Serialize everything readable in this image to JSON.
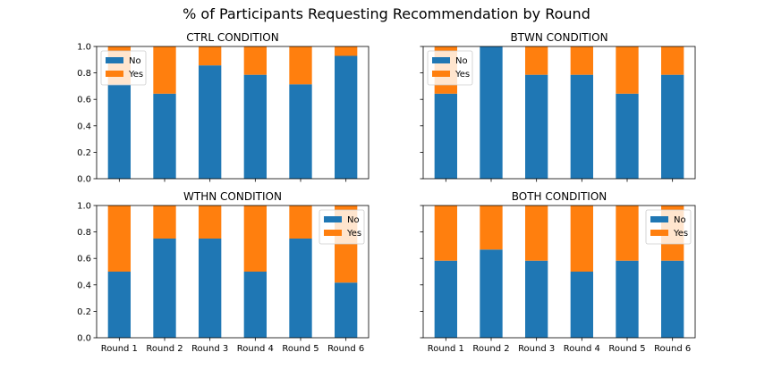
{
  "figure": {
    "suptitle": "% of Participants Requesting Recommendation by Round"
  },
  "chart_data": [
    {
      "type": "bar",
      "stacked": true,
      "title": "CTRL CONDITION",
      "categories": [
        "Round 1",
        "Round 2",
        "Round 3",
        "Round 4",
        "Round 5",
        "Round 6"
      ],
      "series": [
        {
          "name": "No",
          "color": "#1f77b4",
          "values": [
            0.714,
            0.643,
            0.857,
            0.786,
            0.714,
            0.929
          ]
        },
        {
          "name": "Yes",
          "color": "#ff7f0e",
          "values": [
            0.286,
            0.357,
            0.143,
            0.214,
            0.286,
            0.071
          ]
        }
      ],
      "ylim": [
        0,
        1
      ],
      "yticks": [
        "0.0",
        "0.2",
        "0.4",
        "0.6",
        "0.8",
        "1.0"
      ],
      "legend": "upper-left",
      "show_xticklabels": false,
      "show_yticklabels": true
    },
    {
      "type": "bar",
      "stacked": true,
      "title": "BTWN CONDITION",
      "categories": [
        "Round 1",
        "Round 2",
        "Round 3",
        "Round 4",
        "Round 5",
        "Round 6"
      ],
      "series": [
        {
          "name": "No",
          "color": "#1f77b4",
          "values": [
            0.643,
            1.0,
            0.786,
            0.786,
            0.643,
            0.786
          ]
        },
        {
          "name": "Yes",
          "color": "#ff7f0e",
          "values": [
            0.357,
            0.0,
            0.214,
            0.214,
            0.357,
            0.214
          ]
        }
      ],
      "ylim": [
        0,
        1
      ],
      "yticks": [
        "0.0",
        "0.2",
        "0.4",
        "0.6",
        "0.8",
        "1.0"
      ],
      "legend": "upper-left",
      "show_xticklabels": false,
      "show_yticklabels": false
    },
    {
      "type": "bar",
      "stacked": true,
      "title": "WTHN CONDITION",
      "categories": [
        "Round 1",
        "Round 2",
        "Round 3",
        "Round 4",
        "Round 5",
        "Round 6"
      ],
      "series": [
        {
          "name": "No",
          "color": "#1f77b4",
          "values": [
            0.5,
            0.75,
            0.75,
            0.5,
            0.75,
            0.417
          ]
        },
        {
          "name": "Yes",
          "color": "#ff7f0e",
          "values": [
            0.5,
            0.25,
            0.25,
            0.5,
            0.25,
            0.583
          ]
        }
      ],
      "ylim": [
        0,
        1
      ],
      "yticks": [
        "0.0",
        "0.2",
        "0.4",
        "0.6",
        "0.8",
        "1.0"
      ],
      "legend": "upper-right",
      "show_xticklabels": true,
      "show_yticklabels": true
    },
    {
      "type": "bar",
      "stacked": true,
      "title": "BOTH CONDITION",
      "categories": [
        "Round 1",
        "Round 2",
        "Round 3",
        "Round 4",
        "Round 5",
        "Round 6"
      ],
      "series": [
        {
          "name": "No",
          "color": "#1f77b4",
          "values": [
            0.583,
            0.667,
            0.583,
            0.5,
            0.583,
            0.583
          ]
        },
        {
          "name": "Yes",
          "color": "#ff7f0e",
          "values": [
            0.417,
            0.333,
            0.417,
            0.5,
            0.417,
            0.417
          ]
        }
      ],
      "ylim": [
        0,
        1
      ],
      "yticks": [
        "0.0",
        "0.2",
        "0.4",
        "0.6",
        "0.8",
        "1.0"
      ],
      "legend": "upper-right",
      "show_xticklabels": true,
      "show_yticklabels": false
    }
  ]
}
